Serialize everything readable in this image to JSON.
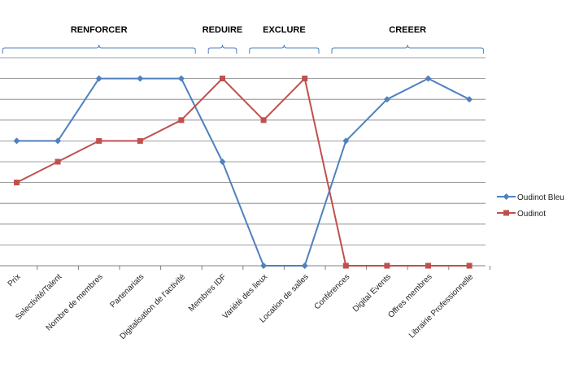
{
  "chart_data": {
    "type": "line",
    "title": "",
    "xlabel": "",
    "ylabel": "",
    "categories": [
      "Prix",
      "Selectivité/Talent",
      "Nombre de membres",
      "Partenariats",
      "Digitalisation de l'activité",
      "Membres IDF",
      "Variété des lieux",
      "Location de salles",
      "Conférences",
      "Digital Events",
      "Offres membres",
      "Librairie Professionnelle"
    ],
    "groups": [
      {
        "label": "RENFORCER",
        "from": 0,
        "to": 4
      },
      {
        "label": "REDUIRE",
        "from": 5,
        "to": 5
      },
      {
        "label": "EXCLURE",
        "from": 6,
        "to": 7
      },
      {
        "label": "CREEER",
        "from": 8,
        "to": 11
      }
    ],
    "series": [
      {
        "name": "Oudinot Bleu",
        "color": "#4F81BD",
        "marker": "diamond",
        "values": [
          6,
          6,
          9,
          9,
          9,
          5,
          0,
          0,
          6,
          8,
          9,
          8
        ]
      },
      {
        "name": "Oudinot",
        "color": "#C0504D",
        "marker": "square",
        "values": [
          4,
          5,
          6,
          6,
          7,
          9,
          7,
          9,
          0,
          0,
          0,
          0
        ]
      }
    ],
    "ylim": [
      0,
      10
    ],
    "grid": true,
    "y_tick_labels_shown": false,
    "legend": "right"
  }
}
